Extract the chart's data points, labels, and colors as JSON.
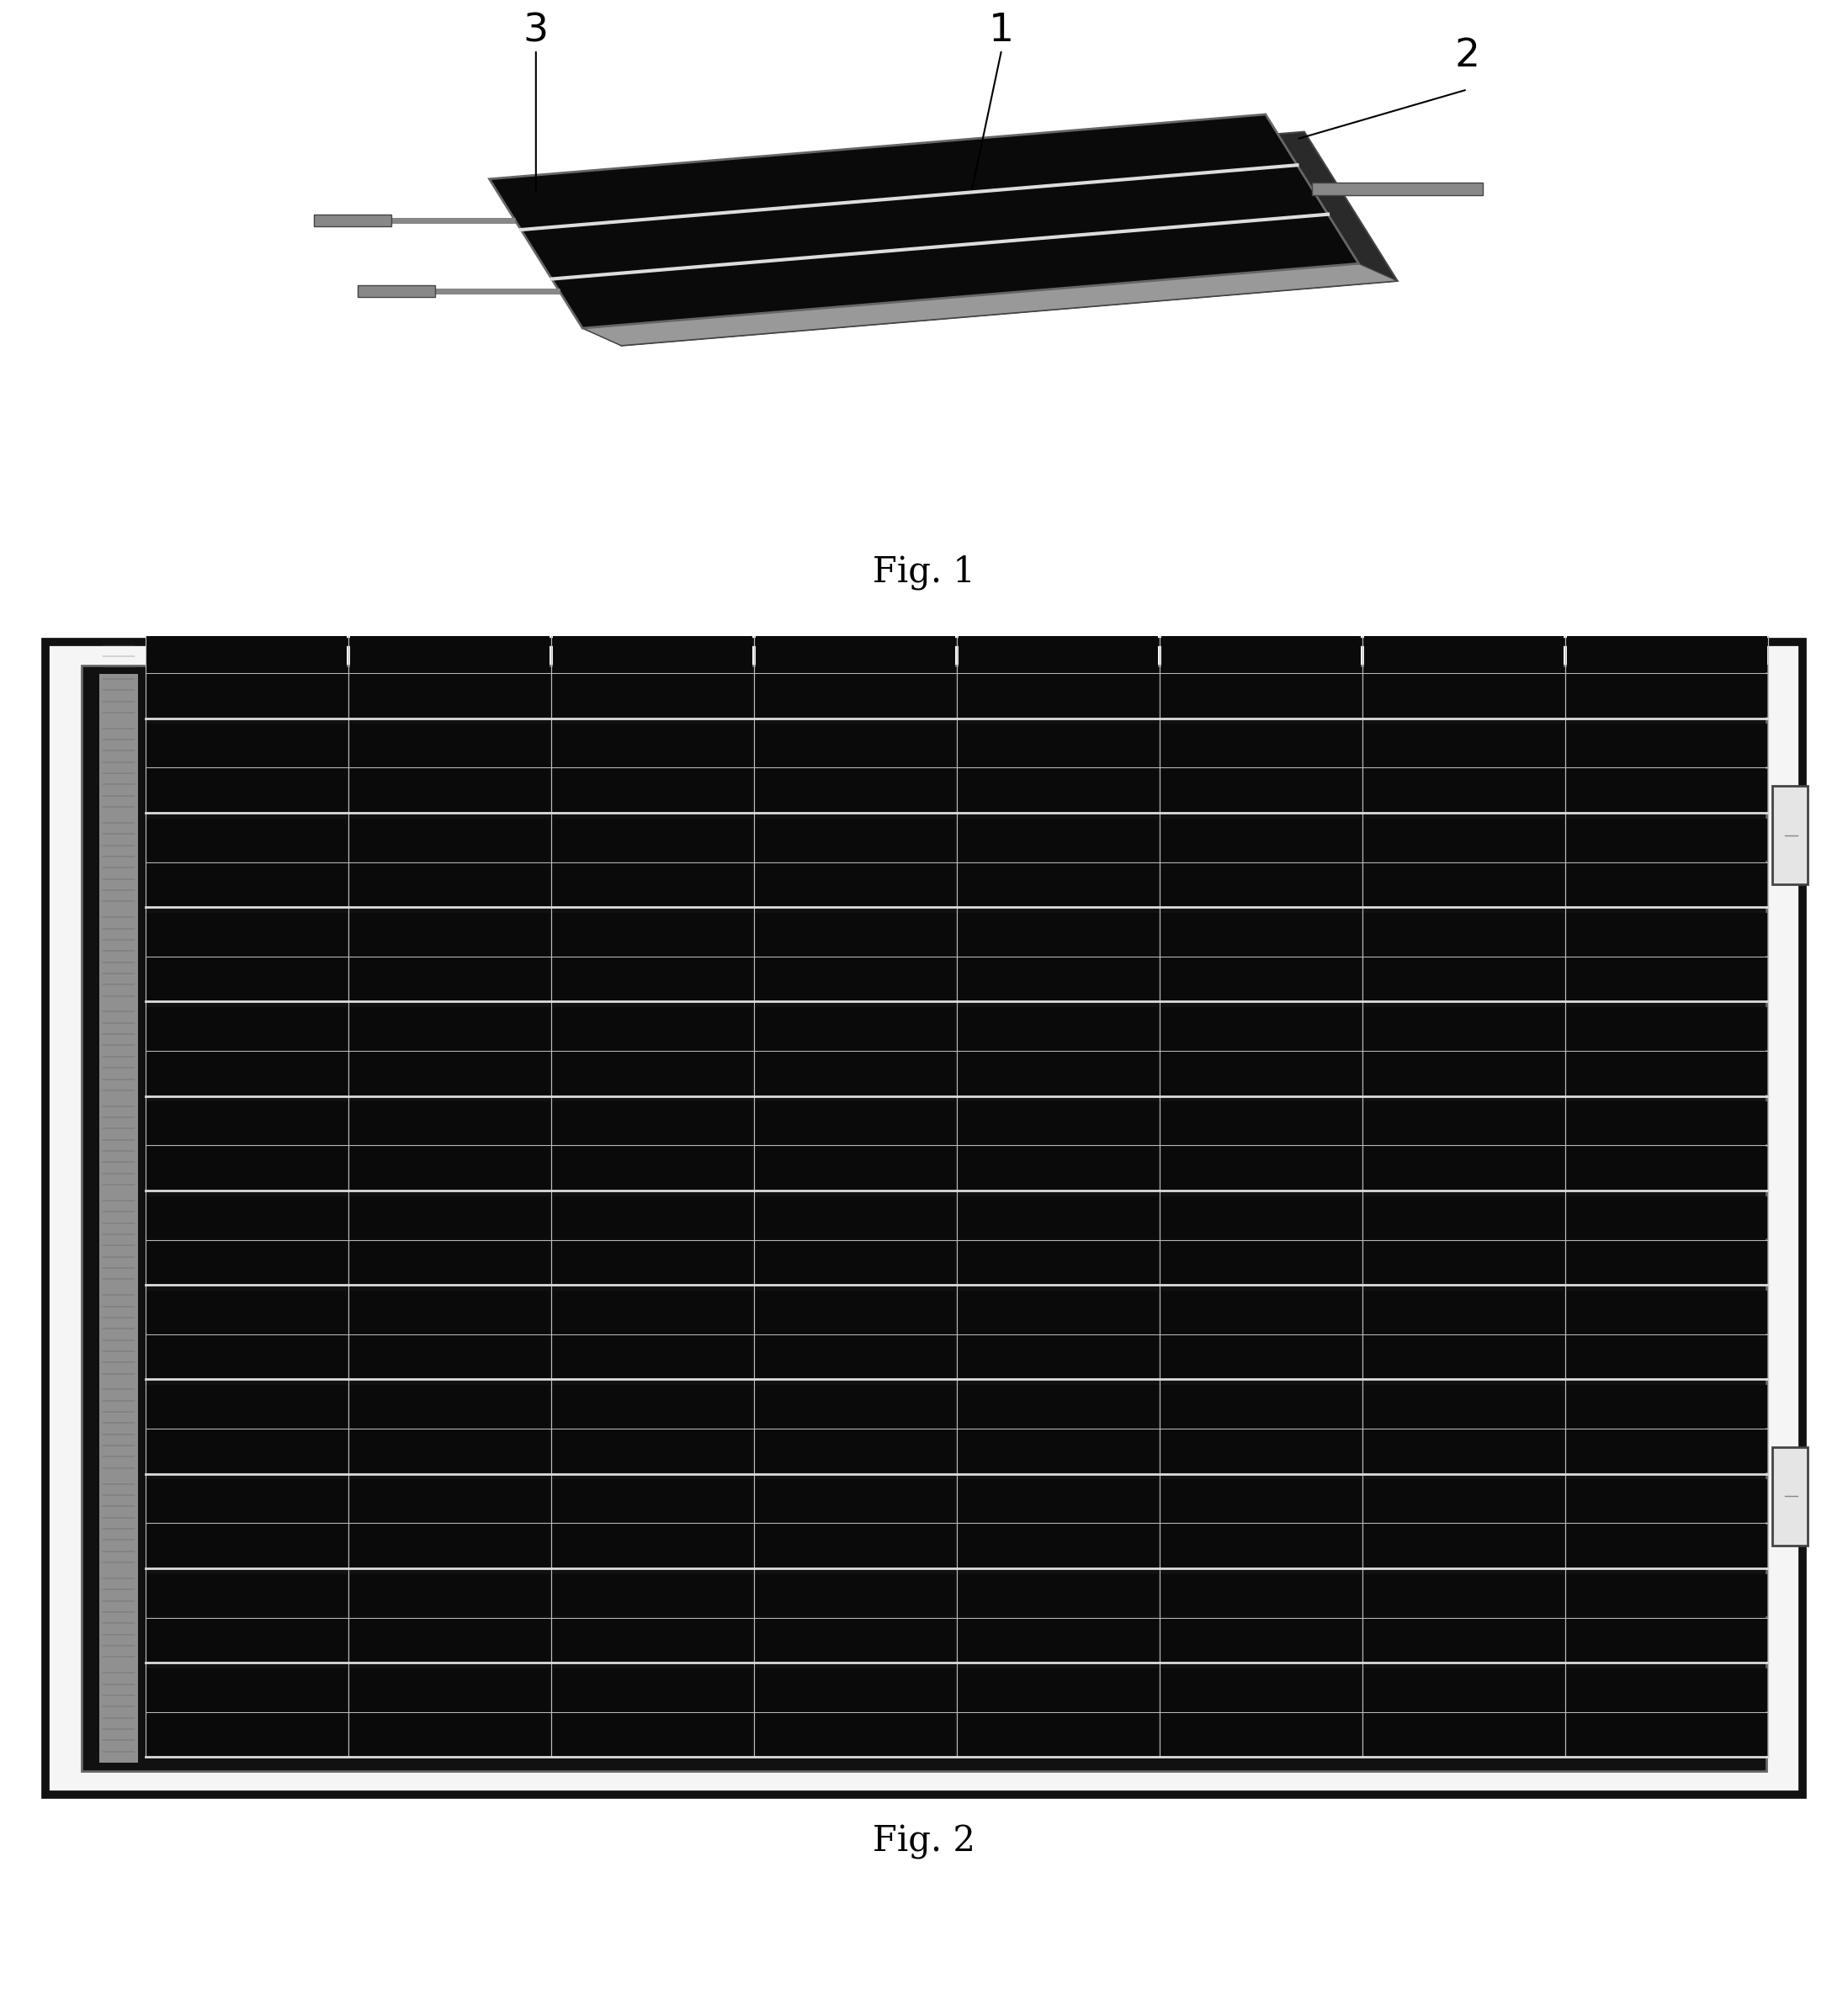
{
  "fig_width": 21.96,
  "fig_height": 23.64,
  "bg_color": "#ffffff",
  "fig1_label": "Fig. 1",
  "fig2_label": "Fig. 2",
  "label_fontsize": 30,
  "annotation_fontsize": 34,
  "module_rows": 12,
  "module_cols": 8,
  "sub_rows": 2,
  "cell_color": "#0a0a0a",
  "grid_line_color": "#c0c0c0",
  "thick_line_color": "#dddddd",
  "frame_outer_color": "#111111",
  "frame_inner_color": "#333333",
  "left_strip_color": "#aaaaaa",
  "tab_color": "#e8e8e8",
  "tab_edge_color": "#444444",
  "connector_tab_rows": [
    2,
    9
  ]
}
